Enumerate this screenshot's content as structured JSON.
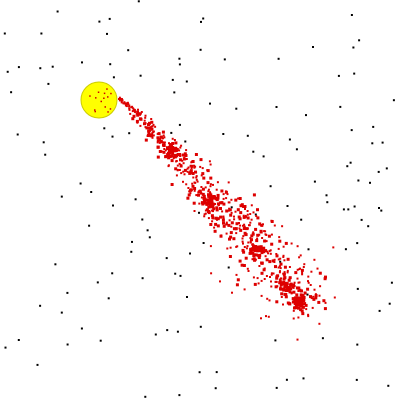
{
  "scene": {
    "description_free": true,
    "background_color": "#ffffff",
    "star_color": "#000000",
    "sun_color": "#ffff00",
    "sun_outline_color": "#cccc00",
    "sun_speck_color": "#cc0000",
    "particle_color": "#dd0000",
    "particle_count": 600,
    "star_count": 140
  }
}
